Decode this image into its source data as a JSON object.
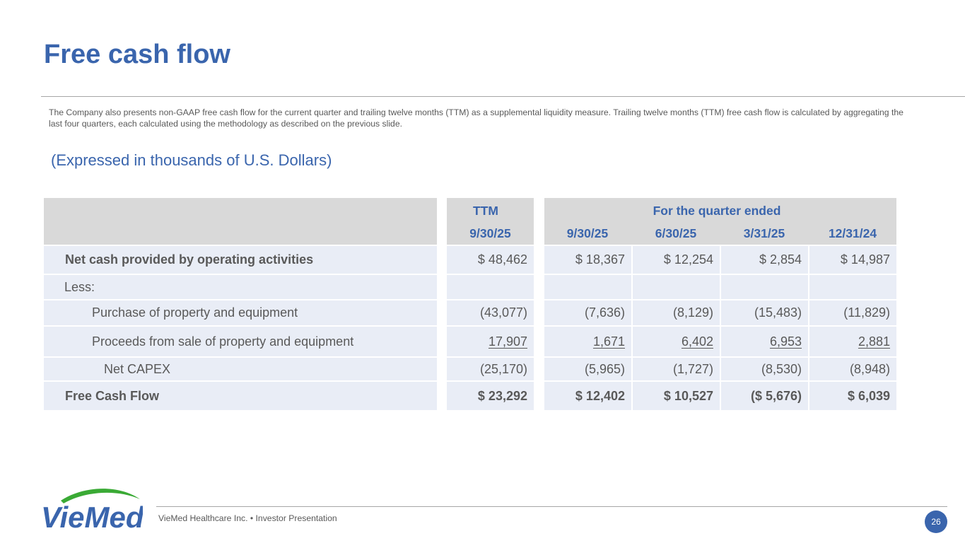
{
  "slide": {
    "title": "Free cash flow",
    "intro": "The Company also presents non-GAAP free cash flow for the current quarter and trailing twelve months (TTM) as a supplemental liquidity measure. Trailing twelve months (TTM) free cash flow is calculated by aggregating the last four quarters, each calculated using the methodology as described on the previous slide.",
    "units_note": "(Expressed in thousands of U.S. Dollars)"
  },
  "table": {
    "group_headers": {
      "ttm": "TTM",
      "quarters": "For the quarter ended"
    },
    "columns": [
      "9/30/25",
      "9/30/25",
      "6/30/25",
      "3/31/25",
      "12/31/24"
    ],
    "rows": [
      {
        "label": "Net cash provided by operating activities",
        "values": [
          "$ 48,462",
          "$ 18,367",
          "$ 12,254",
          "$ 2,854",
          "$ 14,987"
        ]
      },
      {
        "label": "Less:",
        "values": [
          "",
          "",
          "",
          "",
          ""
        ]
      },
      {
        "label": "Purchase of property and equipment",
        "values": [
          "(43,077)",
          "(7,636)",
          "(8,129)",
          "(15,483)",
          "(11,829)"
        ]
      },
      {
        "label": "Proceeds from sale of property and equipment",
        "values": [
          "17,907",
          "1,671",
          "6,402",
          "6,953",
          "2,881"
        ]
      },
      {
        "label": "Net CAPEX",
        "values": [
          "(25,170)",
          "(5,965)",
          "(1,727)",
          "(8,530)",
          "(8,948)"
        ]
      },
      {
        "label": "Free Cash Flow",
        "values": [
          "$ 23,292",
          "$ 12,402",
          "$ 10,527",
          "($ 5,676)",
          "$ 6,039"
        ]
      }
    ]
  },
  "footer": {
    "company": "VieMed Healthcare Inc.",
    "separator": "•",
    "doc": "Investor Presentation",
    "page_number": "26",
    "logo_text": "VieMed"
  },
  "colors": {
    "accent": "#3a65ad",
    "text": "#595959",
    "header_bg": "#d9d9d9",
    "row_bg": "#e9edf6",
    "logo_green": "#3aaa35"
  }
}
